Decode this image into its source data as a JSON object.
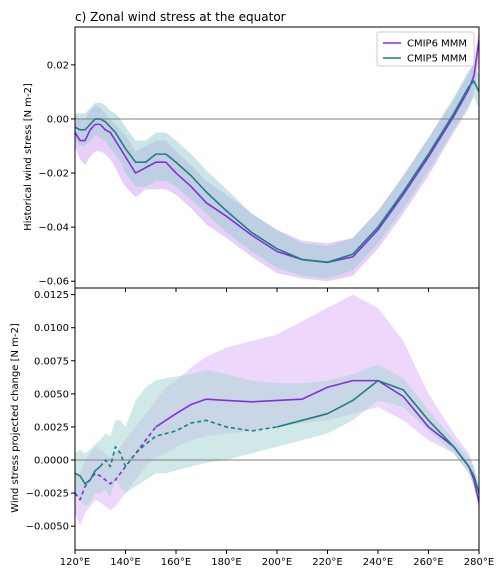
{
  "chart_data": [
    {
      "type": "line",
      "title": "c) Zonal wind stress at the equator",
      "xlabel": "",
      "ylabel": "Historical wind stress [N m-2]",
      "xlim": [
        120,
        280
      ],
      "ylim": [
        -0.0625,
        0.034
      ],
      "xticks": [
        120,
        140,
        160,
        180,
        200,
        220,
        240,
        260,
        280
      ],
      "yticks": [
        {
          "v": 0.02,
          "label": "0.02"
        },
        {
          "v": 0.0,
          "label": "0.00"
        },
        {
          "v": -0.02,
          "label": "−0.02"
        },
        {
          "v": -0.04,
          "label": "−0.04"
        },
        {
          "v": -0.06,
          "label": "−0.06"
        }
      ],
      "legend": "top-right",
      "zero_line": true,
      "x": [
        120,
        122,
        124,
        126,
        128,
        130,
        132,
        134,
        136,
        138,
        140,
        144,
        148,
        152,
        156,
        160,
        166,
        172,
        180,
        190,
        200,
        210,
        220,
        230,
        240,
        250,
        260,
        270,
        276,
        278,
        280
      ],
      "series": [
        {
          "name": "CMIP6 MMM",
          "color": "#8a2be2",
          "values": [
            -0.005,
            -0.008,
            -0.008,
            -0.004,
            -0.002,
            -0.002,
            -0.004,
            -0.005,
            -0.008,
            -0.011,
            -0.014,
            -0.02,
            -0.018,
            -0.016,
            -0.016,
            -0.02,
            -0.025,
            -0.031,
            -0.036,
            -0.043,
            -0.049,
            -0.052,
            -0.053,
            -0.051,
            -0.041,
            -0.028,
            -0.014,
            0.001,
            0.011,
            0.016,
            0.029
          ],
          "band": {
            "lower": [
              -0.01,
              -0.015,
              -0.017,
              -0.014,
              -0.012,
              -0.012,
              -0.013,
              -0.015,
              -0.018,
              -0.022,
              -0.025,
              -0.029,
              -0.026,
              -0.026,
              -0.026,
              -0.028,
              -0.033,
              -0.039,
              -0.044,
              -0.051,
              -0.057,
              -0.059,
              -0.06,
              -0.058,
              -0.048,
              -0.035,
              -0.021,
              -0.005,
              0.004,
              0.01,
              0.022
            ],
            "upper": [
              0.001,
              0.0,
              0.0,
              0.003,
              0.005,
              0.004,
              0.002,
              0.0,
              -0.002,
              -0.004,
              -0.006,
              -0.012,
              -0.01,
              -0.008,
              -0.008,
              -0.012,
              -0.017,
              -0.023,
              -0.028,
              -0.035,
              -0.041,
              -0.045,
              -0.046,
              -0.044,
              -0.034,
              -0.021,
              -0.007,
              0.007,
              0.017,
              0.021,
              0.034
            ],
            "color": "#d6a8f5"
          }
        },
        {
          "name": "CMIP5 MMM",
          "color": "#1a8080",
          "values": [
            -0.003,
            -0.004,
            -0.004,
            -0.002,
            0.0,
            0.0,
            -0.001,
            -0.003,
            -0.005,
            -0.008,
            -0.011,
            -0.016,
            -0.016,
            -0.013,
            -0.013,
            -0.016,
            -0.021,
            -0.027,
            -0.034,
            -0.042,
            -0.048,
            -0.052,
            -0.053,
            -0.05,
            -0.04,
            -0.027,
            -0.013,
            0.002,
            0.012,
            0.014,
            0.01
          ],
          "band": {
            "lower": [
              -0.008,
              -0.01,
              -0.01,
              -0.008,
              -0.006,
              -0.007,
              -0.008,
              -0.011,
              -0.013,
              -0.016,
              -0.02,
              -0.025,
              -0.025,
              -0.023,
              -0.023,
              -0.025,
              -0.03,
              -0.035,
              -0.042,
              -0.049,
              -0.055,
              -0.058,
              -0.059,
              -0.056,
              -0.046,
              -0.033,
              -0.019,
              -0.004,
              0.005,
              0.008,
              0.004
            ],
            "upper": [
              0.002,
              0.002,
              0.002,
              0.004,
              0.006,
              0.006,
              0.005,
              0.003,
              0.002,
              0.0,
              -0.003,
              -0.008,
              -0.008,
              -0.005,
              -0.005,
              -0.008,
              -0.013,
              -0.019,
              -0.026,
              -0.035,
              -0.041,
              -0.046,
              -0.047,
              -0.044,
              -0.034,
              -0.021,
              -0.007,
              0.008,
              0.018,
              0.02,
              0.016
            ],
            "color": "#9ccfd0"
          }
        }
      ]
    },
    {
      "type": "line",
      "title": "",
      "xlabel": "",
      "ylabel": "Wind stress projected change [N m-2]",
      "xlim": [
        120,
        280
      ],
      "ylim": [
        -0.0068,
        0.013
      ],
      "xticks": [
        {
          "v": 120,
          "label": "120°E"
        },
        {
          "v": 140,
          "label": "140°E"
        },
        {
          "v": 160,
          "label": "160°E"
        },
        {
          "v": 180,
          "label": "180°E"
        },
        {
          "v": 200,
          "label": "200°E"
        },
        {
          "v": 220,
          "label": "220°E"
        },
        {
          "v": 240,
          "label": "240°E"
        },
        {
          "v": 260,
          "label": "260°E"
        },
        {
          "v": 280,
          "label": "280°E"
        }
      ],
      "yticks": [
        {
          "v": 0.0125,
          "label": "0.0125"
        },
        {
          "v": 0.01,
          "label": "0.0100"
        },
        {
          "v": 0.0075,
          "label": "0.0075"
        },
        {
          "v": 0.005,
          "label": "0.0050"
        },
        {
          "v": 0.0025,
          "label": "0.0025"
        },
        {
          "v": 0.0,
          "label": "0.0000"
        },
        {
          "v": -0.0025,
          "label": "−0.0025"
        },
        {
          "v": -0.005,
          "label": "−0.0050"
        }
      ],
      "zero_line": true,
      "x": [
        120,
        122,
        124,
        126,
        128,
        130,
        132,
        134,
        136,
        138,
        140,
        144,
        148,
        152,
        156,
        160,
        166,
        172,
        180,
        190,
        200,
        210,
        220,
        230,
        240,
        250,
        260,
        270,
        276,
        278,
        280
      ],
      "series": [
        {
          "name": "CMIP6 MMM",
          "color": "#8a2be2",
          "values": [
            -0.0025,
            -0.003,
            -0.002,
            -0.0015,
            -0.001,
            -0.0012,
            -0.0015,
            -0.0018,
            -0.0015,
            -0.001,
            -0.0005,
            0.0005,
            0.0015,
            0.0025,
            0.003,
            0.0035,
            0.0042,
            0.0046,
            0.0045,
            0.0044,
            0.0045,
            0.0046,
            0.0055,
            0.006,
            0.006,
            0.0048,
            0.0025,
            0.001,
            -0.0005,
            -0.0015,
            -0.0032
          ],
          "dashed_before_x": 152,
          "band": {
            "lower": [
              -0.004,
              -0.005,
              -0.004,
              -0.0035,
              -0.003,
              -0.0032,
              -0.0035,
              -0.0038,
              -0.0035,
              -0.003,
              -0.0025,
              -0.0015,
              -0.0005,
              0.0002,
              0.0005,
              0.001,
              0.0015,
              0.0018,
              0.002,
              0.0022,
              0.0025,
              0.0028,
              0.003,
              0.0035,
              0.004,
              0.003,
              0.0015,
              0.0005,
              -0.001,
              -0.002,
              -0.0038
            ],
            "upper": [
              -0.001,
              -0.001,
              0.0,
              0.0005,
              0.001,
              0.0008,
              0.0005,
              0.0002,
              0.0005,
              0.001,
              0.0015,
              0.0025,
              0.0035,
              0.0045,
              0.0055,
              0.006,
              0.007,
              0.0078,
              0.0085,
              0.009,
              0.0095,
              0.0105,
              0.0115,
              0.0125,
              0.0115,
              0.009,
              0.005,
              0.002,
              0.0005,
              -0.0005,
              -0.0025
            ],
            "color": "#dfb8f7"
          }
        },
        {
          "name": "CMIP5 MMM",
          "color": "#1a8080",
          "values": [
            -0.001,
            -0.0012,
            -0.0018,
            -0.0015,
            -0.0008,
            -0.0005,
            0.0,
            -0.0005,
            0.001,
            0.0005,
            -0.0005,
            0.0005,
            0.0012,
            0.0018,
            0.002,
            0.0022,
            0.0028,
            0.003,
            0.0025,
            0.0022,
            0.0025,
            0.003,
            0.0035,
            0.0045,
            0.006,
            0.0053,
            0.003,
            0.001,
            -0.0005,
            -0.0012,
            -0.0025
          ],
          "dashed_between_x": [
            130,
            200
          ],
          "band": {
            "lower": [
              -0.0025,
              -0.003,
              -0.0035,
              -0.0032,
              -0.0025,
              -0.0025,
              -0.0022,
              -0.0028,
              -0.0015,
              -0.002,
              -0.0025,
              -0.002,
              -0.0015,
              -0.001,
              -0.001,
              -0.0008,
              -0.0005,
              -0.0002,
              0.0,
              0.0005,
              0.001,
              0.0015,
              0.002,
              0.003,
              0.0045,
              0.004,
              0.0022,
              0.0005,
              -0.001,
              -0.002,
              -0.0032
            ],
            "upper": [
              0.0005,
              0.0008,
              0.0005,
              0.0008,
              0.0012,
              0.0015,
              0.002,
              0.0018,
              0.003,
              0.003,
              0.0025,
              0.0045,
              0.0055,
              0.006,
              0.0062,
              0.0063,
              0.0065,
              0.0068,
              0.0065,
              0.006,
              0.0058,
              0.0058,
              0.006,
              0.0065,
              0.0072,
              0.0062,
              0.0038,
              0.0015,
              0.0002,
              -0.0005,
              -0.0018
            ],
            "color": "#a9d6d3"
          }
        }
      ]
    }
  ]
}
